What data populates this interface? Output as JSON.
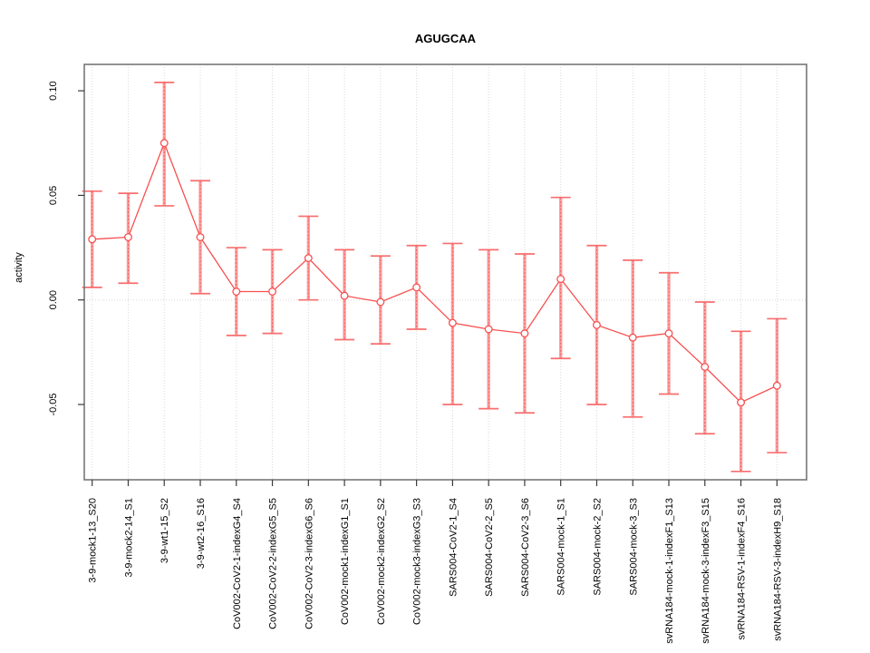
{
  "chart_data": {
    "type": "line",
    "title": "AGUGCAA",
    "xlabel": "",
    "ylabel": "activity",
    "ylim": [
      -0.086,
      0.113
    ],
    "yticks": [
      0.1,
      0.05,
      0.0,
      -0.05
    ],
    "ytick_labels": [
      "0.10",
      "0.05",
      "0.00",
      "-0.05"
    ],
    "grid": {
      "vertical": "dotted per category",
      "horizontal": "dotted at zero only"
    },
    "legend": "none",
    "marker": "open-circle",
    "categories": [
      "3-9-mock1-13_S20",
      "3-9-mock2-14_S1",
      "3-9-wt1-15_S2",
      "3-9-wt2-16_S16",
      "CoV002-CoV2-1-indexG4_S4",
      "CoV002-CoV2-2-indexG5_S5",
      "CoV002-CoV2-3-indexG6_S6",
      "CoV002-mock1-indexG1_S1",
      "CoV002-mock2-indexG2_S2",
      "CoV002-mock3-indexG3_S3",
      "SARS004-CoV2-1_S4",
      "SARS004-CoV2-2_S5",
      "SARS004-CoV2-3_S6",
      "SARS004-mock-1_S1",
      "SARS004-mock-2_S2",
      "SARS004-mock-3_S3",
      "svRNA184-mock-1-indexF1_S13",
      "svRNA184-mock-3-indexF3_S15",
      "svRNA184-RSV-1-indexF4_S16",
      "svRNA184-RSV-3-indexH9_S18"
    ],
    "series": [
      {
        "name": "activity",
        "values": [
          0.029,
          0.03,
          0.075,
          0.03,
          0.004,
          0.004,
          0.02,
          0.002,
          -0.001,
          0.006,
          -0.011,
          -0.014,
          -0.016,
          0.01,
          -0.012,
          -0.018,
          -0.016,
          -0.032,
          -0.049,
          -0.041
        ],
        "error_low": [
          0.006,
          0.008,
          0.045,
          0.003,
          -0.017,
          -0.016,
          0.0,
          -0.019,
          -0.021,
          -0.014,
          -0.05,
          -0.052,
          -0.054,
          -0.028,
          -0.05,
          -0.056,
          -0.045,
          -0.064,
          -0.082,
          -0.073
        ],
        "error_high": [
          0.052,
          0.051,
          0.104,
          0.057,
          0.025,
          0.024,
          0.04,
          0.024,
          0.021,
          0.026,
          0.027,
          0.024,
          0.022,
          0.049,
          0.026,
          0.019,
          0.013,
          -0.001,
          -0.015,
          -0.009
        ]
      }
    ],
    "colors": {
      "line": "#f85050",
      "point": "#f85050",
      "errorbar": "#faa0a0",
      "errorbar_core": "#f75b5b",
      "errorbar_cap": "#f86e6e",
      "grid": "#d9d9d9",
      "box": "#777777",
      "tick": "#3a3a3a",
      "text": "#000000",
      "background": "#ffffff"
    }
  }
}
